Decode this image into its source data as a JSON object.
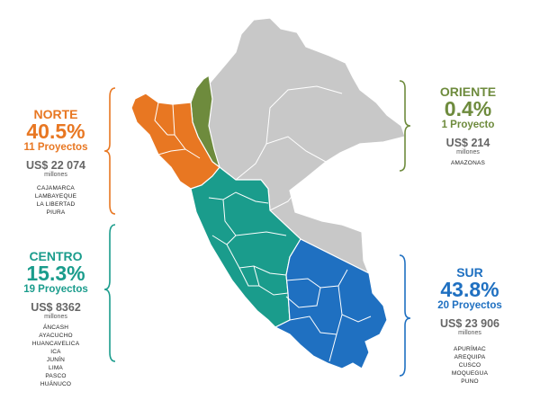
{
  "colors": {
    "norte": "#E87722",
    "centro": "#1A9C8C",
    "sur": "#1F70C1",
    "oriente": "#6E8B3D",
    "base_map": "#C8C8C8",
    "borders": "#FFFFFF"
  },
  "regions": {
    "norte": {
      "name": "NORTE",
      "percent": "40.5%",
      "projects": "11 Proyectos",
      "amount": "US$ 22 074",
      "unit": "millones",
      "departments": [
        "CAJAMARCA",
        "LAMBAYEQUE",
        "LA LIBERTAD",
        "PIURA"
      ]
    },
    "oriente": {
      "name": "ORIENTE",
      "percent": "0.4%",
      "projects": "1 Proyecto",
      "amount": "US$ 214",
      "unit": "millones",
      "departments": [
        "AMAZONAS"
      ]
    },
    "centro": {
      "name": "CENTRO",
      "percent": "15.3%",
      "projects": "19 Proyectos",
      "amount": "US$ 8362",
      "unit": "millones",
      "departments": [
        "ÁNCASH",
        "AYACUCHO",
        "HUANCAVELICA",
        "ICA",
        "JUNÍN",
        "LIMA",
        "PASCO",
        "HUÁNUCO"
      ]
    },
    "sur": {
      "name": "SUR",
      "percent": "43.8%",
      "projects": "20 Proyectos",
      "amount": "US$ 23 906",
      "unit": "millones",
      "departments": [
        "APURÍMAC",
        "AREQUIPA",
        "CUSCO",
        "MOQUEGUA",
        "PUNO"
      ]
    }
  }
}
